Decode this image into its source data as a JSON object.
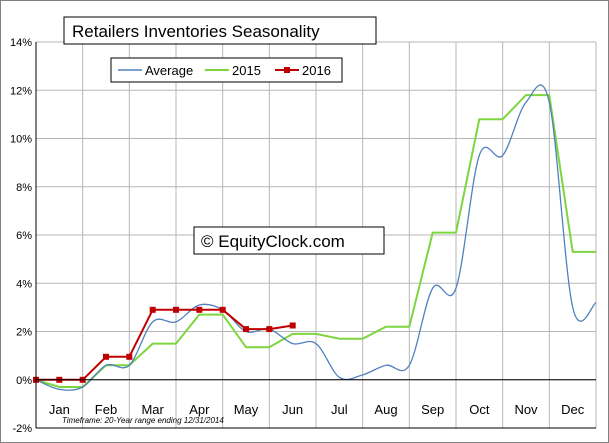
{
  "chart_data": {
    "type": "line",
    "title": "Retailers Inventories Seasonality",
    "watermark": "© EquityClock.com",
    "footnote": "Timeframe: 20-Year range ending 12/31/2014",
    "categories": [
      "Jan",
      "Feb",
      "Mar",
      "Apr",
      "May",
      "Jun",
      "Jul",
      "Aug",
      "Sep",
      "Oct",
      "Nov",
      "Dec"
    ],
    "yticks": [
      "-2%",
      "0%",
      "2%",
      "4%",
      "6%",
      "8%",
      "10%",
      "12%",
      "14%"
    ],
    "ylim": [
      -2,
      14
    ],
    "xlim": [
      0,
      12
    ],
    "grid": true,
    "legend_position": "top-left",
    "series": [
      {
        "name": "Average",
        "color": "#4f81bd",
        "smooth": true,
        "x": [
          0,
          0.5,
          1.0,
          1.5,
          2.0,
          2.5,
          3.0,
          3.5,
          4.0,
          4.5,
          5.0,
          5.5,
          6.0,
          6.5,
          7.0,
          7.5,
          8.0,
          8.5,
          9.0,
          9.5,
          10.0,
          10.5,
          11.0,
          11.5,
          12.0
        ],
        "values": [
          0.0,
          -0.4,
          -0.3,
          0.6,
          0.6,
          2.4,
          2.4,
          3.1,
          2.9,
          2.0,
          2.1,
          1.5,
          1.5,
          0.1,
          0.2,
          0.6,
          0.6,
          3.8,
          3.8,
          9.3,
          9.3,
          11.5,
          11.5,
          3.0,
          3.2
        ]
      },
      {
        "name": "2015",
        "color": "#7dd63f",
        "smooth": false,
        "x": [
          0,
          0.5,
          1.0,
          1.5,
          2.0,
          2.5,
          3.0,
          3.5,
          4.0,
          4.5,
          5.0,
          5.5,
          6.0,
          6.5,
          7.0,
          7.5,
          8.0,
          8.5,
          9.0,
          9.5,
          10.0,
          10.5,
          11.0,
          11.5,
          12.0
        ],
        "values": [
          0.0,
          -0.3,
          -0.3,
          0.6,
          0.6,
          1.5,
          1.5,
          2.7,
          2.7,
          1.35,
          1.35,
          1.9,
          1.9,
          1.7,
          1.7,
          2.2,
          2.2,
          6.1,
          6.1,
          10.8,
          10.8,
          11.8,
          11.8,
          5.3,
          5.3
        ]
      },
      {
        "name": "2016",
        "color": "#c00000",
        "smooth": false,
        "markers": true,
        "x": [
          0,
          0.5,
          1.0,
          1.5,
          2.0,
          2.5,
          3.0,
          3.5,
          4.0,
          4.5,
          5.0,
          5.5
        ],
        "values": [
          0.0,
          0.0,
          0.0,
          0.95,
          0.95,
          2.9,
          2.9,
          2.9,
          2.9,
          2.1,
          2.1,
          2.25
        ]
      }
    ]
  }
}
